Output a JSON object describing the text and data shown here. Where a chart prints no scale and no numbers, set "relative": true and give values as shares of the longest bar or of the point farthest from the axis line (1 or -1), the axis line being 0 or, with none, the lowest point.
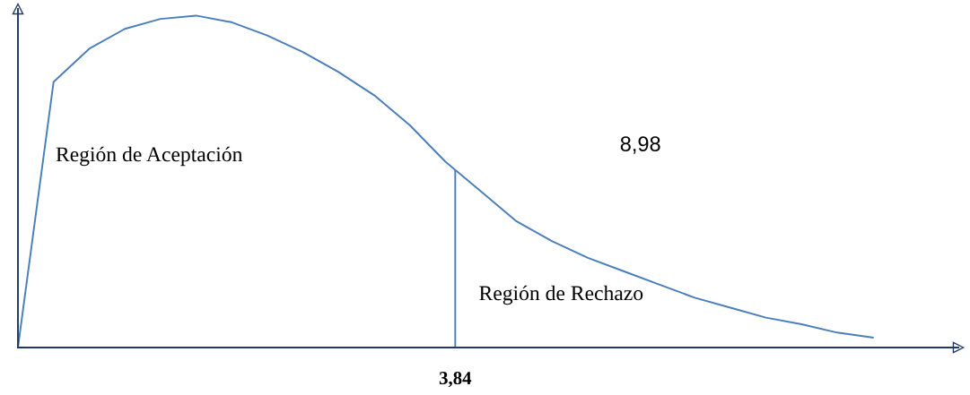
{
  "chart_data": {
    "type": "line",
    "relative": true,
    "categories": [
      null,
      null,
      null,
      null,
      null,
      null,
      null,
      null,
      null,
      null,
      null,
      null,
      null,
      null,
      null,
      null,
      null,
      null,
      null,
      null,
      null,
      null,
      null,
      null,
      null
    ],
    "series": [
      {
        "color": "#4a7ebb",
        "values": [
          0,
          0.8,
          0.9,
          0.96,
          0.99,
          1.0,
          0.98,
          0.94,
          0.89,
          0.83,
          0.76,
          0.67,
          0.56,
          0.47,
          0.38,
          0.32,
          0.27,
          0.23,
          0.19,
          0.15,
          0.12,
          0.09,
          0.07,
          0.045,
          0.03
        ]
      }
    ],
    "annotations": [
      "Región de Aceptación",
      "Región de Rechazo",
      "8,98",
      "3,84"
    ]
  }
}
